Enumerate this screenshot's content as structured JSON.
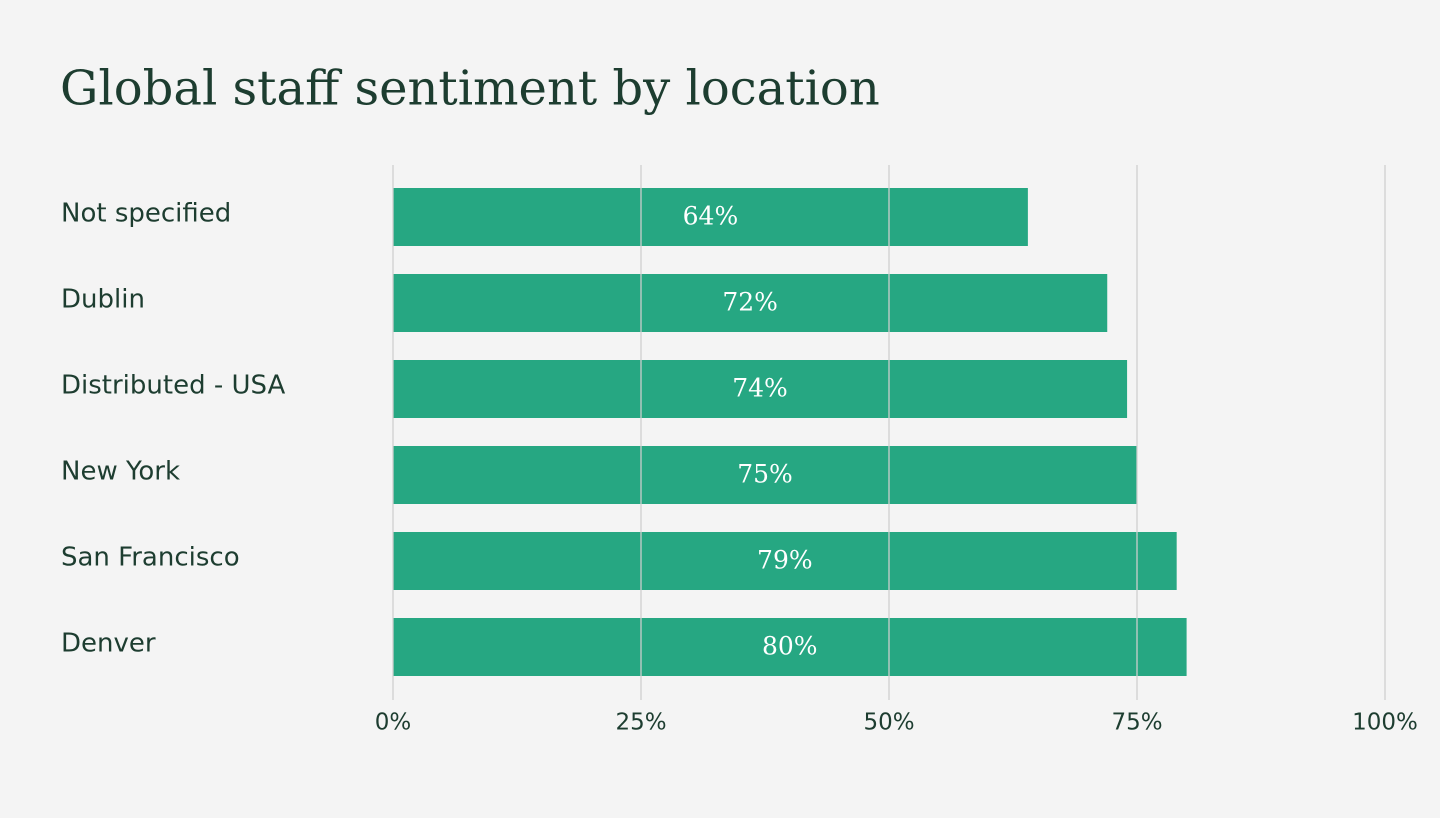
{
  "chart_data": {
    "type": "bar",
    "orientation": "horizontal",
    "title": "Global staff sentiment by location",
    "categories": [
      "Not specified",
      "Dublin",
      "Distributed - USA",
      "New York",
      "San Francisco",
      "Denver"
    ],
    "values": [
      64,
      72,
      74,
      75,
      79,
      80
    ],
    "value_labels": [
      "64%",
      "72%",
      "74%",
      "75%",
      "79%",
      "80%"
    ],
    "color": "#26a782",
    "xlim": [
      0,
      100
    ],
    "xticks": [
      {
        "value": 0,
        "label": "0%"
      },
      {
        "value": 25,
        "label": "25%"
      },
      {
        "value": 50,
        "label": "50%"
      },
      {
        "value": 75,
        "label": "75%"
      },
      {
        "value": 100,
        "label": "100%"
      }
    ],
    "grid": true
  }
}
